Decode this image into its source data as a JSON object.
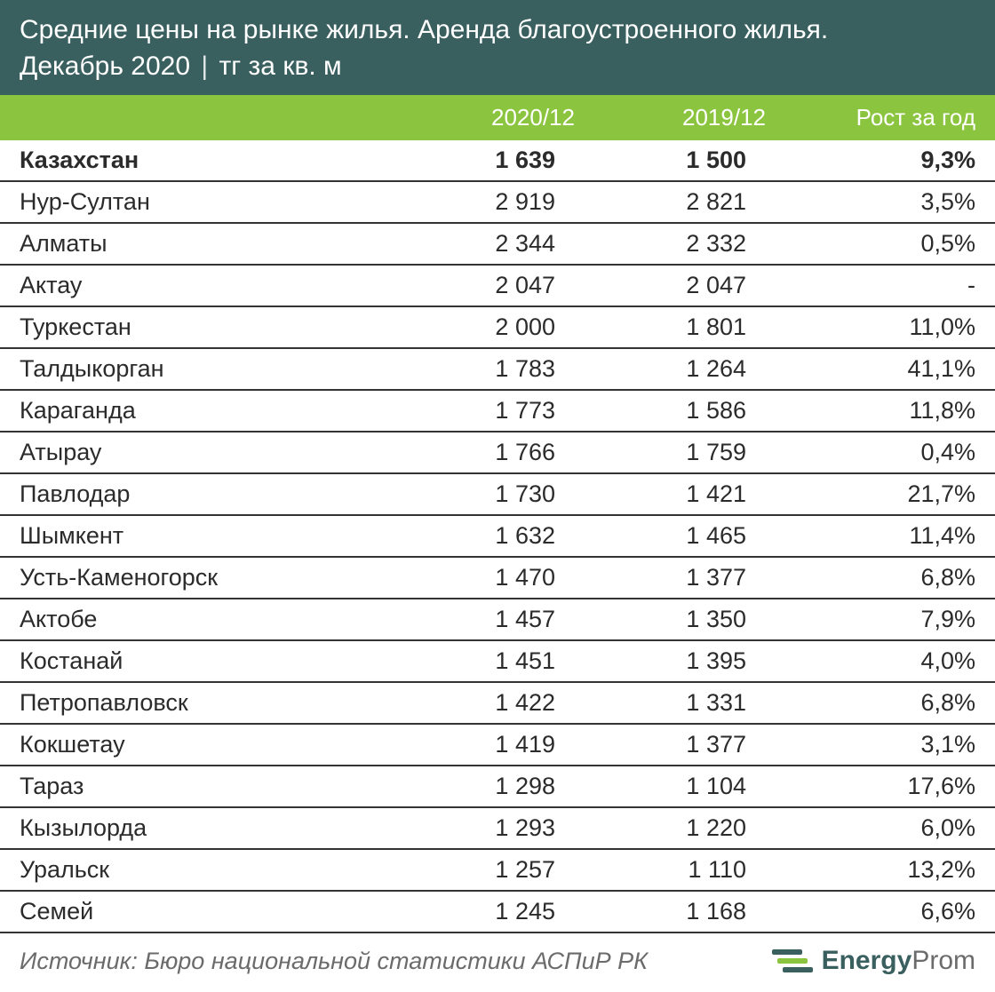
{
  "header": {
    "title_line1": "Средние цены на рынке жилья. Аренда благоустроенного жилья.",
    "title_line2a": "Декабрь 2020",
    "title_line2b": "тг за кв. м"
  },
  "columns": {
    "c2": "2020/12",
    "c3": "2019/12",
    "c4": "Рост за год"
  },
  "rows": [
    {
      "city": "Казахстан",
      "v2020": "1 639",
      "v2019": "1 500",
      "grow": "9,3%",
      "total": true
    },
    {
      "city": "Нур-Султан",
      "v2020": "2 919",
      "v2019": "2 821",
      "grow": "3,5%"
    },
    {
      "city": "Алматы",
      "v2020": "2 344",
      "v2019": "2 332",
      "grow": "0,5%"
    },
    {
      "city": "Актау",
      "v2020": "2 047",
      "v2019": "2 047",
      "grow": "-"
    },
    {
      "city": "Туркестан",
      "v2020": "2 000",
      "v2019": "1 801",
      "grow": "11,0%"
    },
    {
      "city": "Талдыкорган",
      "v2020": "1 783",
      "v2019": "1 264",
      "grow": "41,1%"
    },
    {
      "city": "Караганда",
      "v2020": "1 773",
      "v2019": "1 586",
      "grow": "11,8%"
    },
    {
      "city": "Атырау",
      "v2020": "1 766",
      "v2019": "1 759",
      "grow": "0,4%"
    },
    {
      "city": "Павлодар",
      "v2020": "1 730",
      "v2019": "1 421",
      "grow": "21,7%"
    },
    {
      "city": "Шымкент",
      "v2020": "1 632",
      "v2019": "1 465",
      "grow": "11,4%"
    },
    {
      "city": "Усть-Каменогорск",
      "v2020": "1 470",
      "v2019": "1 377",
      "grow": "6,8%"
    },
    {
      "city": "Актобе",
      "v2020": "1 457",
      "v2019": "1 350",
      "grow": "7,9%"
    },
    {
      "city": "Костанай",
      "v2020": "1 451",
      "v2019": "1 395",
      "grow": "4,0%"
    },
    {
      "city": "Петропавловск",
      "v2020": "1 422",
      "v2019": "1 331",
      "grow": "6,8%"
    },
    {
      "city": "Кокшетау",
      "v2020": "1 419",
      "v2019": "1 377",
      "grow": "3,1%"
    },
    {
      "city": "Тараз",
      "v2020": "1 298",
      "v2019": "1 104",
      "grow": "17,6%"
    },
    {
      "city": "Кызылорда",
      "v2020": "1 293",
      "v2019": "1 220",
      "grow": "6,0%"
    },
    {
      "city": "Уральск",
      "v2020": "1 257",
      "v2019": "1 110",
      "grow": "13,2%"
    },
    {
      "city": "Семей",
      "v2020": "1 245",
      "v2019": "1 168",
      "grow": "6,6%"
    }
  ],
  "footer": {
    "source": "Источник: Бюро национальной статистики АСПиР РК",
    "brand_bold": "Energy",
    "brand_light": "Prom"
  },
  "style": {
    "header_bg": "#3a5f5f",
    "colhead_bg": "#8bc540",
    "row_border": "#333333",
    "text_color": "#2b2b2b",
    "footer_text": "#6b6b6b",
    "font_family": "Arial",
    "title_fontsize": 30,
    "row_fontsize": 27
  }
}
